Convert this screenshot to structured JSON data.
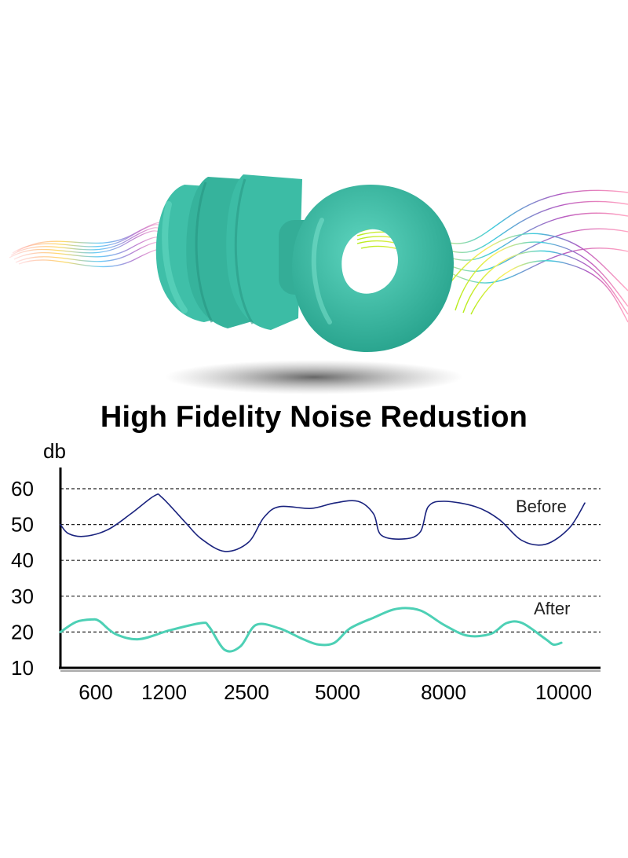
{
  "page": {
    "title": "High Fidelity Noise Redustion",
    "product_color": "#3fbfa8"
  },
  "chart_data": {
    "type": "line",
    "ylabel": "db",
    "yticks": [
      10,
      20,
      30,
      40,
      50,
      60
    ],
    "ylim": [
      10,
      60
    ],
    "xticks": [
      "600",
      "1200",
      "2500",
      "5000",
      "8000",
      "10000"
    ],
    "grid": "horizontal dashed",
    "series": [
      {
        "name": "Before",
        "color": "#1a237e",
        "x": [
          0,
          1,
          3,
          6,
          9,
          12,
          13,
          16,
          18,
          21,
          24,
          26,
          28,
          32,
          35,
          38,
          40,
          41,
          44,
          46,
          47,
          49,
          53,
          56,
          59,
          62,
          65,
          67
        ],
        "values": [
          50,
          47.5,
          46.7,
          48.5,
          53,
          58,
          57.5,
          50.5,
          46,
          42.5,
          45,
          52,
          55,
          54.5,
          56,
          56.5,
          53,
          47,
          46,
          48,
          55,
          56.5,
          55,
          51.5,
          45.5,
          44.5,
          49,
          56
        ]
      },
      {
        "name": "After",
        "color": "#4dd0b5",
        "x": [
          0,
          2,
          4,
          5,
          7,
          10,
          14,
          18,
          19,
          21,
          23,
          25,
          28,
          31,
          33,
          35,
          37,
          40,
          43,
          46,
          49,
          52,
          55,
          57,
          59,
          62,
          63,
          64
        ],
        "values": [
          20,
          22.8,
          23.5,
          23,
          19.5,
          18,
          20.5,
          22.5,
          21.5,
          15,
          16,
          22,
          21,
          18,
          16.5,
          17,
          21,
          24,
          26.5,
          26,
          22,
          19,
          19.5,
          22.5,
          22.5,
          18,
          16.5,
          17
        ]
      }
    ]
  }
}
